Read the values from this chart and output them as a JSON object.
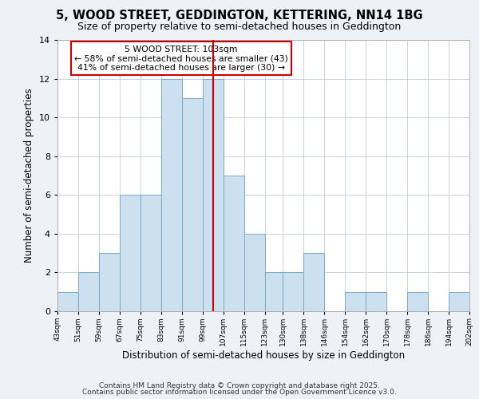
{
  "title": "5, WOOD STREET, GEDDINGTON, KETTERING, NN14 1BG",
  "subtitle": "Size of property relative to semi-detached houses in Geddington",
  "xlabel": "Distribution of semi-detached houses by size in Geddington",
  "ylabel": "Number of semi-detached properties",
  "bin_edges": [
    43,
    51,
    59,
    67,
    75,
    83,
    91,
    99,
    107,
    115,
    123,
    130,
    138,
    146,
    154,
    162,
    170,
    178,
    186,
    194,
    202
  ],
  "counts": [
    1,
    2,
    3,
    6,
    6,
    12,
    11,
    12,
    7,
    4,
    2,
    2,
    3,
    0,
    1,
    1,
    0,
    1,
    0,
    1
  ],
  "bar_color": "#cce0f0",
  "bar_edgecolor": "#7aaac8",
  "property_value": 103,
  "vline_color": "#cc0000",
  "annotation_title": "5 WOOD STREET: 103sqm",
  "annotation_line1": "← 58% of semi-detached houses are smaller (43)",
  "annotation_line2": "41% of semi-detached houses are larger (30) →",
  "annotation_box_edgecolor": "#cc0000",
  "annotation_box_facecolor": "#ffffff",
  "ylim": [
    0,
    14
  ],
  "yticks": [
    0,
    2,
    4,
    6,
    8,
    10,
    12,
    14
  ],
  "tick_labels": [
    "43sqm",
    "51sqm",
    "59sqm",
    "67sqm",
    "75sqm",
    "83sqm",
    "91sqm",
    "99sqm",
    "107sqm",
    "115sqm",
    "123sqm",
    "130sqm",
    "138sqm",
    "146sqm",
    "154sqm",
    "162sqm",
    "170sqm",
    "178sqm",
    "186sqm",
    "194sqm",
    "202sqm"
  ],
  "footnote1": "Contains HM Land Registry data © Crown copyright and database right 2025.",
  "footnote2": "Contains public sector information licensed under the Open Government Licence v3.0.",
  "background_color": "#eef2f7",
  "plot_background_color": "#ffffff",
  "title_fontsize": 10.5,
  "subtitle_fontsize": 9,
  "xlabel_fontsize": 8.5,
  "ylabel_fontsize": 8.5,
  "footnote_fontsize": 6.5,
  "grid_color": "#c8d4e0"
}
